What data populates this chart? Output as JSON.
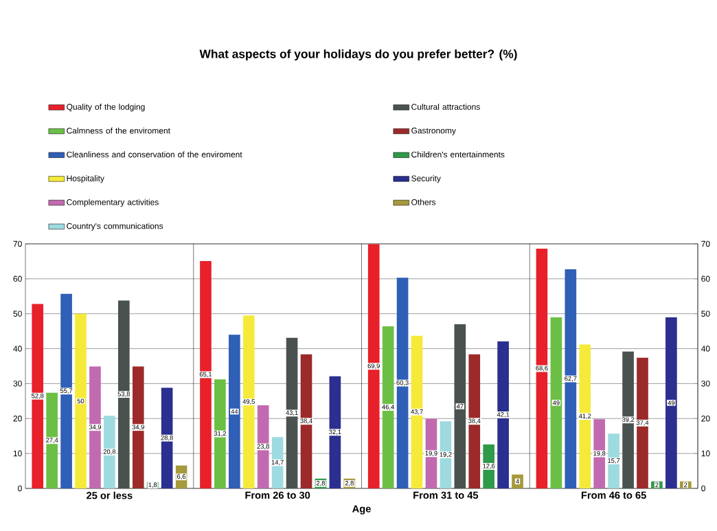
{
  "chart_data": {
    "type": "bar",
    "title": "What aspects of your holidays do you prefer better? (%)",
    "xlabel": "Age",
    "categories": [
      "25 or less",
      "From 26 to 30",
      "From 31 to 45",
      "From 46 to 65"
    ],
    "series": [
      {
        "name": "Quality of the lodging",
        "color": "#e8202a",
        "values": [
          52.8,
          65.1,
          69.9,
          68.6
        ],
        "value_labels": [
          "52,8",
          "65,1",
          "69,9",
          "68,6"
        ]
      },
      {
        "name": "Calmness of the enviroment",
        "color": "#6cbf45",
        "values": [
          27.4,
          31.2,
          46.4,
          49
        ],
        "value_labels": [
          "27,4",
          "31,2",
          "46,4",
          "49"
        ]
      },
      {
        "name": "Cleanliness and conservation of the enviroment",
        "color": "#2f5fb6",
        "values": [
          55.7,
          44,
          60.3,
          62.7
        ],
        "value_labels": [
          "55,7",
          "44",
          "60,3",
          "62,7"
        ]
      },
      {
        "name": "Hospitality",
        "color": "#f5ea3a",
        "values": [
          50,
          49.5,
          43.7,
          41.2
        ],
        "value_labels": [
          "50",
          "49,5",
          "43,7",
          "41,2"
        ]
      },
      {
        "name": "Complementary activities",
        "color": "#c26ab0",
        "values": [
          34.9,
          23.8,
          19.9,
          19.8
        ],
        "value_labels": [
          "34,9",
          "23,8",
          "19,9",
          "19,8"
        ]
      },
      {
        "name": "Country's communications",
        "color": "#9ddbe0",
        "values": [
          20.8,
          14.7,
          19.2,
          15.7
        ],
        "value_labels": [
          "20,8",
          "14,7",
          "19,2",
          "15,7"
        ]
      },
      {
        "name": "Cultural attractions",
        "color": "#4a5250",
        "values": [
          53.8,
          43.1,
          47,
          39.2
        ],
        "value_labels": [
          "53,8",
          "43,1",
          "47",
          "39,2"
        ]
      },
      {
        "name": "Gastronomy",
        "color": "#9c2a2a",
        "values": [
          34.9,
          38.4,
          38.4,
          37.4
        ],
        "value_labels": [
          "34,9",
          "38,4",
          "38,4",
          "37,4"
        ]
      },
      {
        "name": "Children's entertainments",
        "color": "#2f9a4a",
        "values": [
          1.8,
          2.8,
          12.6,
          2
        ],
        "value_labels": [
          "1,8",
          "2,8",
          "12,6",
          "2"
        ]
      },
      {
        "name": "Security",
        "color": "#2b2f8f",
        "values": [
          28.8,
          32.1,
          42.1,
          49
        ],
        "value_labels": [
          "28,8",
          "32,1",
          "42,1",
          "49"
        ]
      },
      {
        "name": "Others",
        "color": "#a59a3c",
        "values": [
          6.6,
          2.8,
          4,
          2
        ],
        "value_labels": [
          "6,6",
          "2,8",
          "4",
          "2"
        ]
      }
    ],
    "ylim": [
      0,
      70
    ],
    "yticks": [
      0,
      10,
      20,
      30,
      40,
      50,
      60,
      70
    ],
    "y2lim": [
      0,
      70
    ],
    "y2ticks": [
      0,
      10,
      20,
      30,
      40,
      50,
      60,
      70
    ],
    "grid": "y",
    "legend": "top"
  }
}
